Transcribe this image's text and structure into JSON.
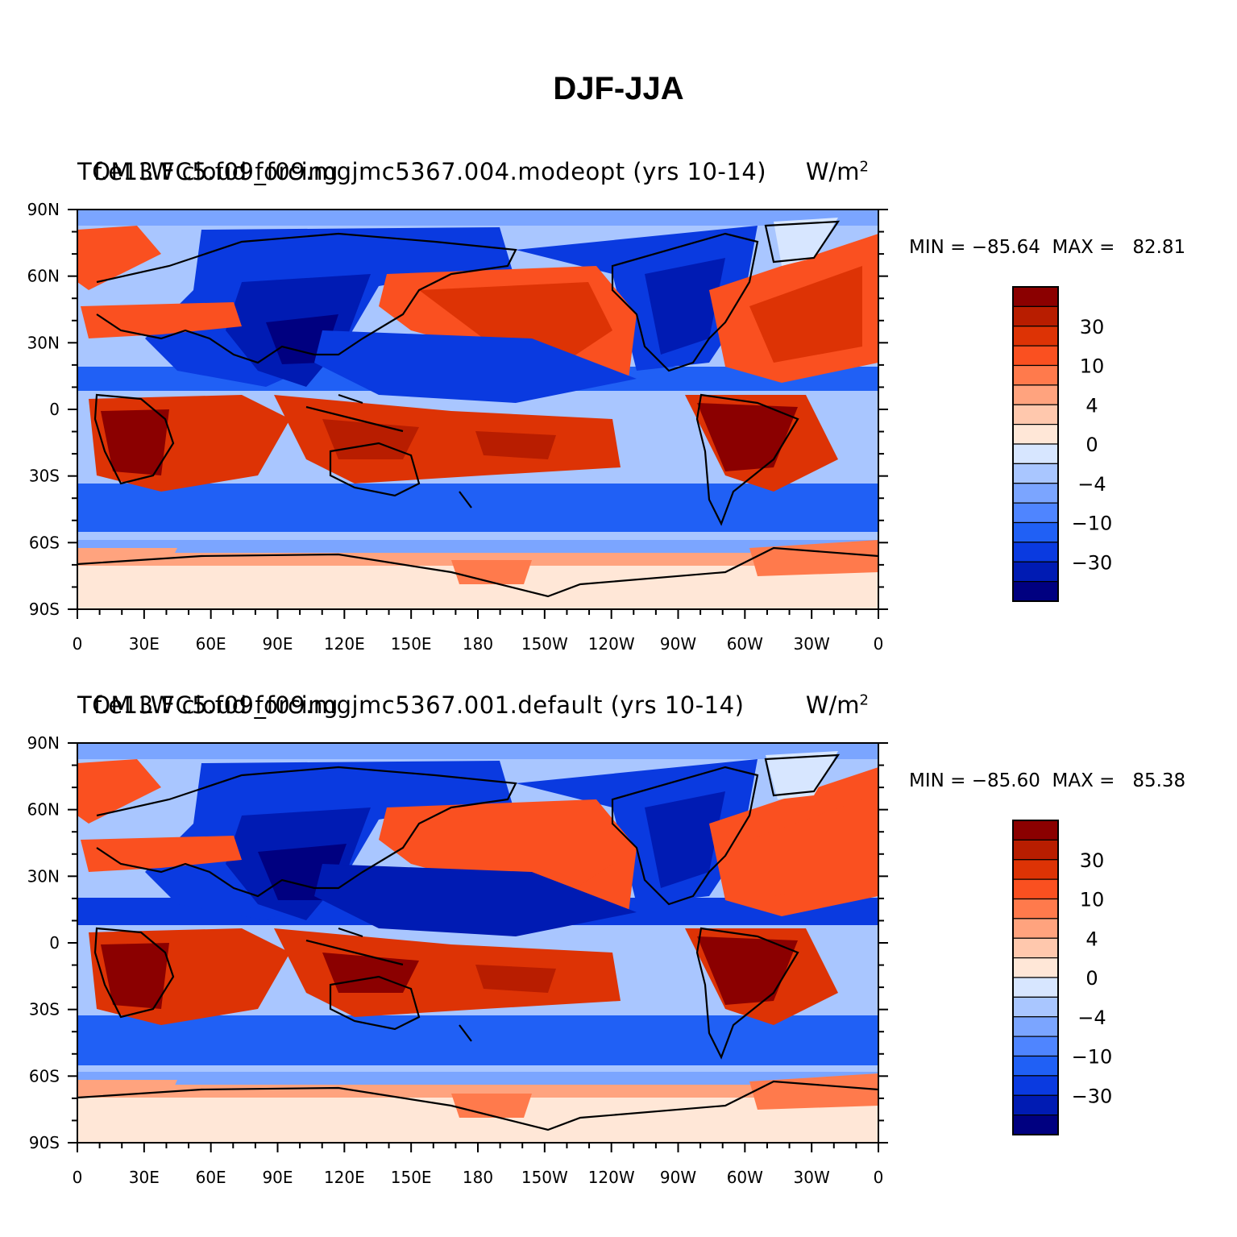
{
  "main_title": "DJF-JJA",
  "colors": {
    "levels": [
      "#000080",
      "#001bb3",
      "#0a3ae0",
      "#2060f5",
      "#4f85ff",
      "#7ba5ff",
      "#a9c6ff",
      "#d7e6ff",
      "#ffe7d7",
      "#ffc8ad",
      "#ffa37e",
      "#ff7a4c",
      "#fa5020",
      "#dd3305",
      "#b81d00",
      "#8b0000"
    ],
    "coast": "#000000"
  },
  "colorbar": {
    "labels": [
      "30",
      "10",
      "4",
      "0",
      "−4",
      "−10",
      "−30"
    ]
  },
  "axes": {
    "y_labels": [
      "90N",
      "60N",
      "30N",
      "0",
      "30S",
      "60S",
      "90S"
    ],
    "x_labels": [
      "0",
      "30E",
      "60E",
      "90E",
      "120E",
      "150E",
      "180",
      "150W",
      "120W",
      "90W",
      "60W",
      "30W",
      "0"
    ]
  },
  "panels": [
    {
      "case_title": "f.e13.FC5.f09_f09.mgjmc5367.004.modeopt (yrs 10-14)",
      "left_string": "TOM LW cloud forcing",
      "units_text": "W/m",
      "units_exp": "2",
      "min_label": "MIN = ",
      "min_value": "−85.64",
      "max_label": "MAX = ",
      "max_value": "82.81"
    },
    {
      "case_title": "f.e13.FC5.f09_f09.mgjmc5367.001.default (yrs 10-14)",
      "left_string": "TOM LW cloud forcing",
      "units_text": "W/m",
      "units_exp": "2",
      "min_label": "MIN = ",
      "min_value": "−85.60",
      "max_label": "MAX = ",
      "max_value": "85.38"
    }
  ],
  "chart_data": [
    {
      "type": "heatmap",
      "title": "f.e13.FC5.f09_f09.mgjmc5367.004.modeopt (yrs 10-14)",
      "variable": "TOM LW cloud forcing",
      "units": "W/m^2",
      "xlim": [
        0,
        360
      ],
      "ylim": [
        -90,
        90
      ],
      "levels": [
        -40,
        -30,
        -20,
        -10,
        -6,
        -4,
        -2,
        0,
        2,
        4,
        6,
        10,
        20,
        30,
        40
      ],
      "min": -85.64,
      "max": 82.81
    },
    {
      "type": "heatmap",
      "title": "f.e13.FC5.f09_f09.mgjmc5367.001.default (yrs 10-14)",
      "variable": "TOM LW cloud forcing",
      "units": "W/m^2",
      "xlim": [
        0,
        360
      ],
      "ylim": [
        -90,
        90
      ],
      "levels": [
        -40,
        -30,
        -20,
        -10,
        -6,
        -4,
        -2,
        0,
        2,
        4,
        6,
        10,
        20,
        30,
        40
      ],
      "min": -85.6,
      "max": 85.38
    }
  ]
}
